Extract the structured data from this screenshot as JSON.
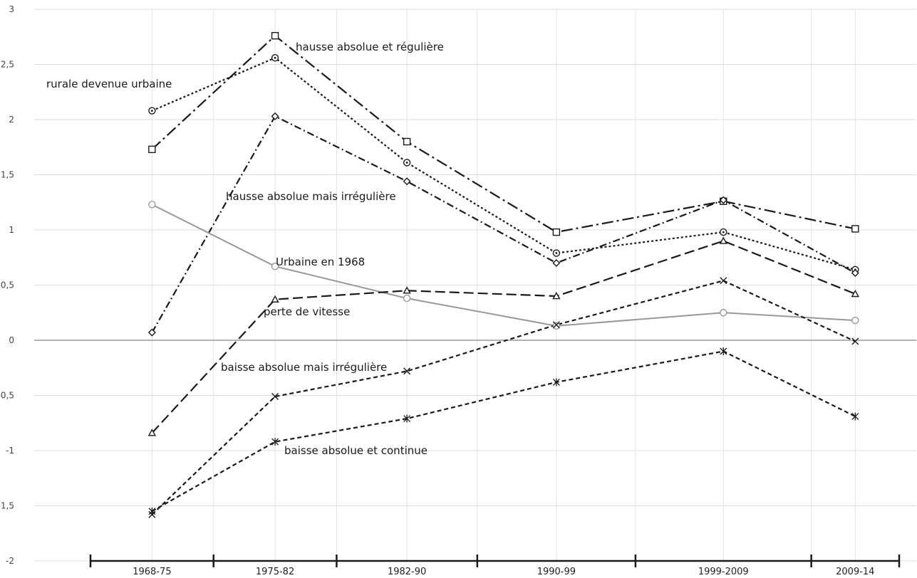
{
  "chart_data": {
    "type": "line",
    "title": "",
    "xlabel": "",
    "ylabel": "",
    "categories": [
      "1968-75",
      "1975-82",
      "1982-90",
      "1990-99",
      "1999-2009",
      "2009-14"
    ],
    "x_tick_labels": [
      "1968-75",
      "1975-82",
      "1982-90",
      "1990-99",
      "1999-2009",
      "2009-14"
    ],
    "x_midpoints": [
      1971.5,
      1978.5,
      1986,
      1994.5,
      2004,
      2011.5
    ],
    "x_boundaries": [
      1968,
      1975,
      1982,
      1990,
      1999,
      2009,
      2014
    ],
    "ylim": [
      -2,
      3
    ],
    "y_ticks": [
      -2,
      -1.5,
      -1,
      -0.5,
      0,
      0.5,
      1,
      1.5,
      2,
      2.5,
      3
    ],
    "y_tick_labels": [
      "-2",
      "-1,5",
      "-1",
      "-0,5",
      "0",
      "0,5",
      "1",
      "1,5",
      "2",
      "2,5",
      "3"
    ],
    "grid": true,
    "legend": "none",
    "series": [
      {
        "key": "s1",
        "name": "hausse absolue et régulière",
        "values": [
          1.73,
          2.76,
          1.8,
          0.98,
          1.26,
          1.01
        ],
        "marker": "square",
        "dash": "long-dash-dot",
        "color": "#1a1a1a"
      },
      {
        "key": "s2",
        "name": "rurale devenue urbaine",
        "values": [
          2.08,
          2.56,
          1.61,
          0.79,
          0.98,
          0.64
        ],
        "marker": "circle-dot",
        "dash": "dotted",
        "color": "#1a1a1a"
      },
      {
        "key": "s3",
        "name": "hausse absolue mais irrégulière",
        "values": [
          0.07,
          2.03,
          1.44,
          0.7,
          1.27,
          0.61
        ],
        "marker": "diamond",
        "dash": "dash-dot",
        "color": "#1a1a1a"
      },
      {
        "key": "s4",
        "name": "Urbaine en 1968",
        "values": [
          1.23,
          0.67,
          0.38,
          0.13,
          0.25,
          0.18
        ],
        "marker": "circle",
        "dash": "solid",
        "color": "#999999"
      },
      {
        "key": "s5",
        "name": "perte de vitesse",
        "values": [
          -0.84,
          0.37,
          0.45,
          0.4,
          0.9,
          0.42
        ],
        "marker": "triangle",
        "dash": "long-dash",
        "color": "#1a1a1a"
      },
      {
        "key": "s6",
        "name": "baisse absolue mais irrégulière",
        "values": [
          -1.58,
          -0.51,
          -0.28,
          0.14,
          0.54,
          -0.01
        ],
        "marker": "x",
        "dash": "short-dash",
        "color": "#1a1a1a"
      },
      {
        "key": "s7",
        "name": "baisse absolue et continue",
        "values": [
          -1.55,
          -0.92,
          -0.71,
          -0.38,
          -0.1,
          -0.69
        ],
        "marker": "asterisk",
        "dash": "short-dash",
        "color": "#1a1a1a"
      }
    ],
    "annotations": {
      "s1": "hausse absolue et régulière",
      "s2": "rurale devenue urbaine",
      "s3": "hausse absolue mais irrégulière",
      "s4": "Urbaine en 1968",
      "s5": "perte de vitesse",
      "s6": "baisse absolue mais irrégulière",
      "s7": "baisse absolue et continue"
    }
  }
}
